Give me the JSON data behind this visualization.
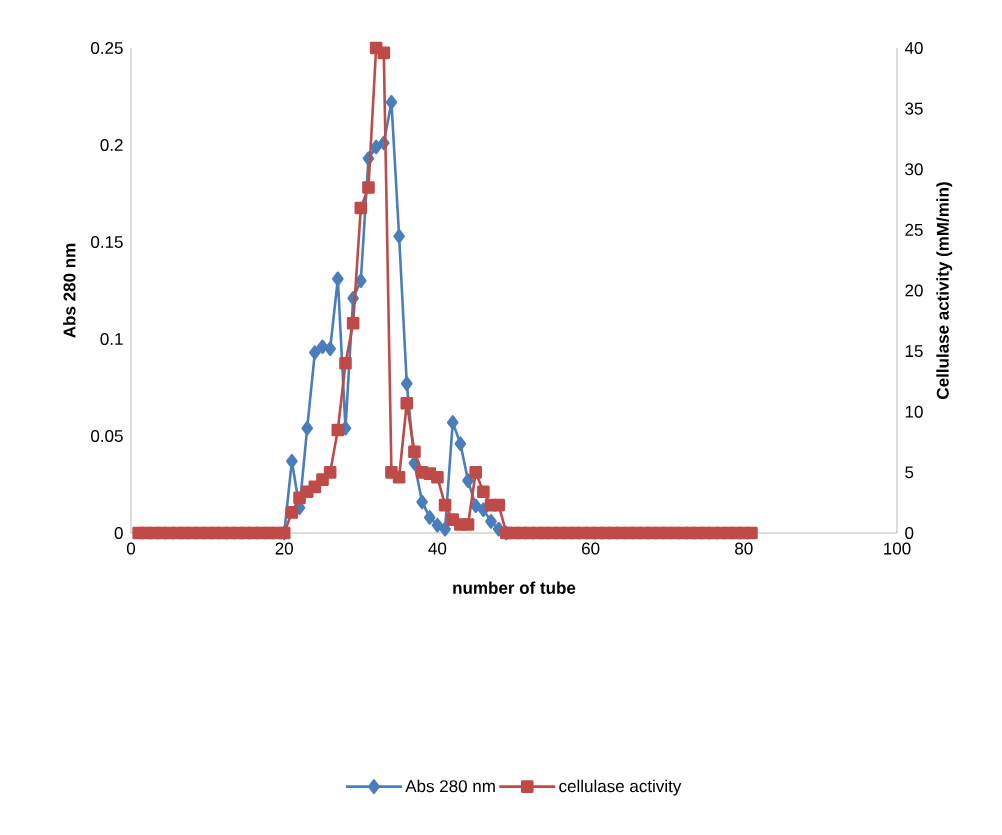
{
  "chart_data": {
    "type": "line",
    "xlabel": "number of tube",
    "ylabel": "Abs 280 nm",
    "y2label": "Cellulase activity (mM/min)",
    "x": [
      1,
      2,
      3,
      4,
      5,
      6,
      7,
      8,
      9,
      10,
      11,
      12,
      13,
      14,
      15,
      16,
      17,
      18,
      19,
      20,
      21,
      22,
      23,
      24,
      25,
      26,
      27,
      28,
      29,
      30,
      31,
      32,
      33,
      34,
      35,
      36,
      37,
      38,
      39,
      40,
      41,
      42,
      43,
      44,
      45,
      46,
      47,
      48,
      49,
      50,
      51,
      52,
      53,
      54,
      55,
      56,
      57,
      58,
      59,
      60,
      61,
      62,
      63,
      64,
      65,
      66,
      67,
      68,
      69,
      70,
      71,
      72,
      73,
      74,
      75,
      76,
      77,
      78,
      79,
      80,
      81
    ],
    "series": [
      {
        "name": "Abs 280 nm",
        "color": "#4a7ebb",
        "marker": "diamond",
        "values": [
          null,
          null,
          null,
          null,
          null,
          null,
          null,
          null,
          null,
          null,
          null,
          null,
          null,
          null,
          null,
          null,
          null,
          null,
          null,
          0,
          0.037,
          0.013,
          0.054,
          0.093,
          0.096,
          0.095,
          0.131,
          0.054,
          0.121,
          0.13,
          0.193,
          0.199,
          0.201,
          0.222,
          0.153,
          0.077,
          0.036,
          0.016,
          0.008,
          0.004,
          0.002,
          0.057,
          0.046,
          0.027,
          0.014,
          0.012,
          0.006,
          0.002,
          0,
          null,
          null,
          null,
          null,
          null,
          null,
          null,
          null,
          null,
          null,
          null,
          null,
          null,
          null,
          null,
          null,
          null,
          null,
          null,
          null,
          null,
          null,
          null,
          null,
          null,
          null,
          null,
          null,
          null,
          null,
          null,
          null
        ]
      },
      {
        "name": "cellulase activity",
        "color": "#be4b48",
        "marker": "square",
        "axis": "y2",
        "values": [
          0,
          0,
          0,
          0,
          0,
          0,
          0,
          0,
          0,
          0,
          0,
          0,
          0,
          0,
          0,
          0,
          0,
          0,
          0,
          0,
          1.7,
          2.9,
          3.4,
          3.8,
          4.4,
          5.0,
          8.5,
          14.0,
          17.3,
          26.8,
          28.5,
          40,
          39.6,
          5.0,
          4.6,
          10.7,
          6.7,
          5.0,
          4.9,
          4.6,
          2.3,
          1.1,
          0.7,
          0.7,
          5.0,
          3.4,
          2.3,
          2.3,
          0,
          0,
          0,
          0,
          0,
          0,
          0,
          0,
          0,
          0,
          0,
          0,
          0,
          0,
          0,
          0,
          0,
          0,
          0,
          0,
          0,
          0,
          0,
          0,
          0,
          0,
          0,
          0,
          0,
          0,
          0,
          0,
          0
        ]
      }
    ],
    "xlim": [
      0,
      100
    ],
    "xticks": [
      0,
      20,
      40,
      60,
      80,
      100
    ],
    "ylim": [
      0,
      0.25
    ],
    "yticks": [
      0,
      0.05,
      0.1,
      0.15,
      0.2,
      0.25
    ],
    "y2lim": [
      0,
      40
    ],
    "y2ticks": [
      0,
      5,
      10,
      15,
      20,
      25,
      30,
      35,
      40
    ],
    "legend": "bottom",
    "grid": false
  }
}
